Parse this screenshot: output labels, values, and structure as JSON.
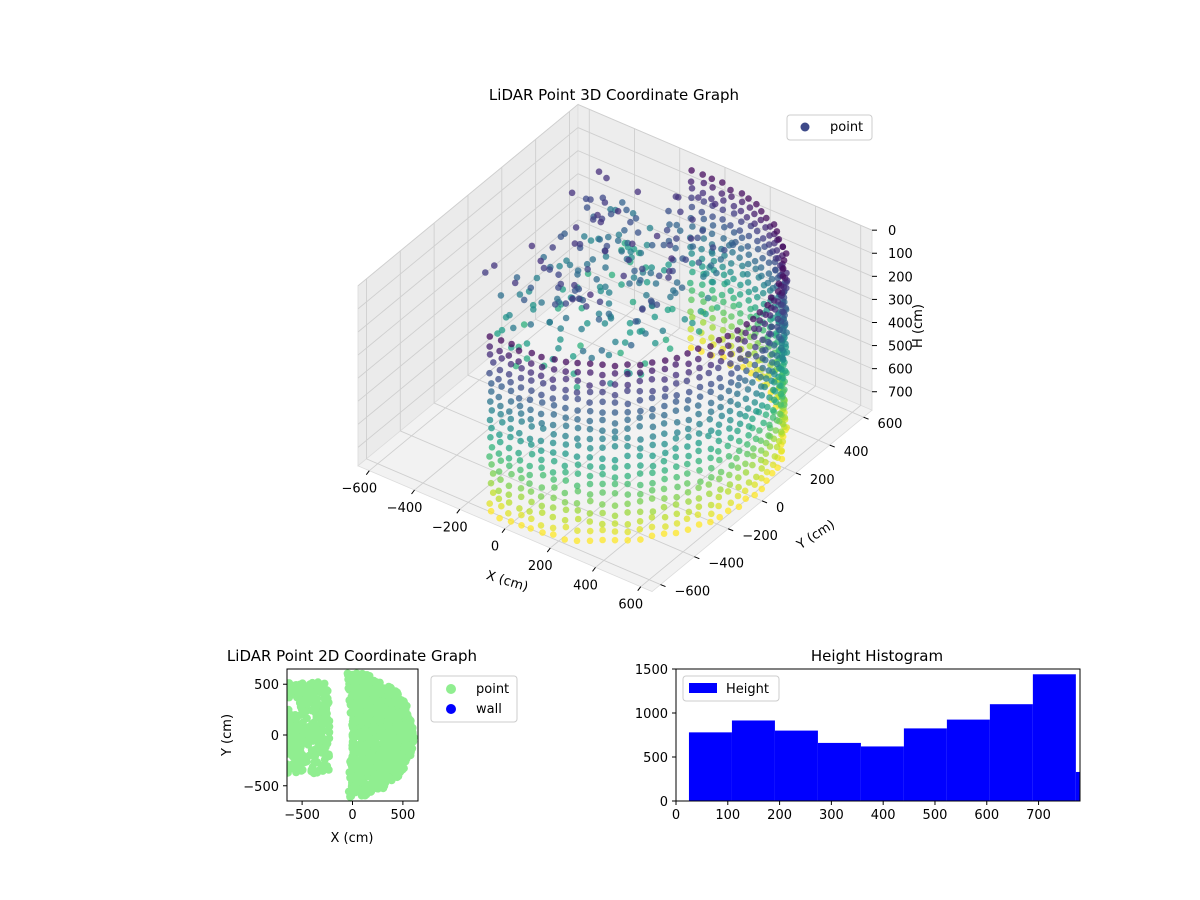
{
  "chart_data": [
    {
      "type": "scatter3d",
      "title": "LiDAR Point 3D Coordinate Graph",
      "xlabel": "X (cm)",
      "ylabel": "Y (cm)",
      "zlabel": "H (cm)",
      "xlim": [
        -650,
        650
      ],
      "ylim": [
        -650,
        650
      ],
      "zlim": [
        0,
        780
      ],
      "z_inverted": true,
      "xticks": [
        -600,
        -400,
        -200,
        0,
        200,
        400,
        600
      ],
      "yticks": [
        -600,
        -400,
        -200,
        0,
        200,
        400,
        600
      ],
      "zticks": [
        0,
        100,
        200,
        300,
        400,
        500,
        600,
        700
      ],
      "legend": {
        "entries": [
          "point"
        ],
        "placement": "top-right"
      },
      "colormap": "viridis",
      "grid": true,
      "series": [
        {
          "name": "point",
          "shape": "curved wall (arc of ~200°) of radius ~600 cm plus an inner cluster",
          "wall_radius": 600,
          "wall_angle_range_deg": [
            -100,
            100
          ],
          "wall_height_range": [
            20,
            780
          ],
          "inner_cluster_x_range": [
            -450,
            150
          ],
          "inner_cluster_y_range": [
            -200,
            600
          ],
          "inner_cluster_height_range": [
            100,
            500
          ]
        }
      ]
    },
    {
      "type": "scatter",
      "title": "LiDAR Point 2D Coordinate Graph",
      "xlabel": "X (cm)",
      "ylabel": "Y (cm)",
      "xlim": [
        -650,
        650
      ],
      "ylim": [
        -650,
        650
      ],
      "xticks": [
        -500,
        0,
        500
      ],
      "yticks": [
        -500,
        0,
        500
      ],
      "legend": {
        "entries": [
          "point",
          "wall"
        ],
        "placement": "right-outside"
      },
      "series": [
        {
          "name": "point",
          "color": "#90ee90"
        },
        {
          "name": "wall",
          "color": "#0000ff"
        }
      ]
    },
    {
      "type": "bar",
      "title": "Height Histogram",
      "xlabel": "",
      "ylabel": "",
      "xlim": [
        0,
        780
      ],
      "ylim": [
        0,
        1500
      ],
      "xticks": [
        0,
        100,
        200,
        300,
        400,
        500,
        600,
        700
      ],
      "yticks": [
        0,
        500,
        1000,
        1500
      ],
      "legend": {
        "entries": [
          "Height"
        ],
        "placement": "top-left"
      },
      "series": [
        {
          "name": "Height",
          "color": "#0000ff",
          "bins": [
            {
              "start": 25,
              "end": 108,
              "count": 780
            },
            {
              "start": 108,
              "end": 191,
              "count": 915
            },
            {
              "start": 191,
              "end": 274,
              "count": 800
            },
            {
              "start": 274,
              "end": 357,
              "count": 660
            },
            {
              "start": 357,
              "end": 440,
              "count": 620
            },
            {
              "start": 440,
              "end": 523,
              "count": 825
            },
            {
              "start": 523,
              "end": 606,
              "count": 925
            },
            {
              "start": 606,
              "end": 689,
              "count": 1100
            },
            {
              "start": 689,
              "end": 772,
              "count": 1440
            },
            {
              "start": 772,
              "end": 855,
              "count": 330
            }
          ]
        }
      ]
    }
  ]
}
